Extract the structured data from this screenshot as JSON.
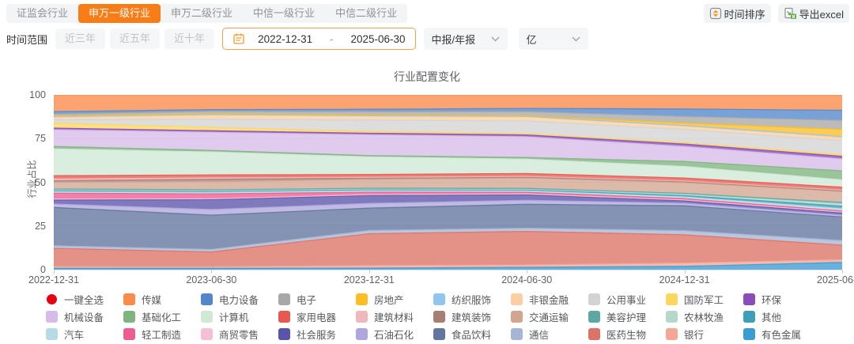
{
  "tabs": {
    "items": [
      {
        "label": "证监会行业",
        "active": false
      },
      {
        "label": "申万一级行业",
        "active": true
      },
      {
        "label": "申万二级行业",
        "active": false
      },
      {
        "label": "中信一级行业",
        "active": false
      },
      {
        "label": "中信二级行业",
        "active": false
      }
    ]
  },
  "actions": {
    "sort_label": "时间排序",
    "export_label": "导出excel",
    "sort_icon": "sort-arrows-icon",
    "export_icon": "excel-export-icon",
    "accent_orange": "#f59a23",
    "excel_green": "#5bab4e"
  },
  "filters": {
    "range_label": "时间范围",
    "range_options": [
      "近三年",
      "近五年",
      "近十年"
    ],
    "date_start": "2022-12-31",
    "date_separator": "-",
    "date_end": "2025-06-30",
    "report_select": "中报/年报",
    "unit_select": "亿"
  },
  "legend": {
    "select_all": {
      "label": "一键全选",
      "color": "#e60012"
    }
  },
  "chart_data": {
    "type": "area",
    "stacked": true,
    "normalized_percent": true,
    "title": "行业配置变化",
    "xlabel": "",
    "ylabel": "行业占比",
    "ylim": [
      0,
      100
    ],
    "yticks": [
      0,
      25,
      50,
      75,
      100
    ],
    "grid": true,
    "legend_position": "bottom",
    "x": [
      "2022-12-31",
      "2023-06-30",
      "2023-12-31",
      "2024-06-30",
      "2024-12-31",
      "2025-06-30"
    ],
    "series": [
      {
        "name": "传媒",
        "color": "#fa8b4a",
        "values": [
          10,
          9,
          9,
          8.5,
          8.5,
          8.5
        ]
      },
      {
        "name": "电力设备",
        "color": "#5287cc",
        "values": [
          1.5,
          1,
          1.5,
          2,
          4.5,
          5.5
        ]
      },
      {
        "name": "电子",
        "color": "#a8a8a8",
        "values": [
          1,
          1.5,
          2,
          2.5,
          4,
          5
        ]
      },
      {
        "name": "房地产",
        "color": "#fbbe23",
        "values": [
          0.5,
          0.5,
          0.5,
          0.5,
          1.5,
          4
        ]
      },
      {
        "name": "纺织服饰",
        "color": "#90c5f0",
        "values": [
          0.4,
          0.4,
          0.3,
          0.3,
          0.3,
          0.3
        ]
      },
      {
        "name": "非银金融",
        "color": "#fbcfa2",
        "values": [
          1.5,
          2.5,
          2.5,
          2.5,
          2,
          2
        ]
      },
      {
        "name": "公用事业",
        "color": "#d3d3d3",
        "values": [
          2,
          5,
          7,
          8,
          8,
          7.5
        ]
      },
      {
        "name": "国防军工",
        "color": "#fbd75f",
        "values": [
          3,
          2,
          1.2,
          0.8,
          0.8,
          1
        ]
      },
      {
        "name": "环保",
        "color": "#8a4db8",
        "values": [
          1,
          1,
          1,
          1.2,
          1.5,
          1.5
        ]
      },
      {
        "name": "机械设备",
        "color": "#d7bbe8",
        "values": [
          10,
          11,
          13,
          13,
          9,
          6.5
        ]
      },
      {
        "name": "基础化工",
        "color": "#7eb57e",
        "values": [
          1.5,
          1,
          0.8,
          1,
          3,
          5
        ]
      },
      {
        "name": "计算机",
        "color": "#cfe9d6",
        "values": [
          16,
          14,
          11,
          9,
          7,
          4
        ]
      },
      {
        "name": "家用电器",
        "color": "#e85850",
        "values": [
          2,
          1.8,
          1.8,
          1.8,
          1.8,
          1.6
        ]
      },
      {
        "name": "建筑材料",
        "color": "#efb8bd",
        "values": [
          1,
          0.8,
          0.5,
          0.5,
          0.4,
          0.4
        ]
      },
      {
        "name": "建筑装饰",
        "color": "#a77f72",
        "values": [
          1,
          1.5,
          0.8,
          0.5,
          0.5,
          0.4
        ]
      },
      {
        "name": "交通运输",
        "color": "#d2a591",
        "values": [
          4,
          5,
          5.5,
          6.5,
          6.5,
          6
        ]
      },
      {
        "name": "美容护理",
        "color": "#5da7a3",
        "values": [
          0.5,
          0.5,
          0.5,
          0.5,
          0.6,
          0.8
        ]
      },
      {
        "name": "农林牧渔",
        "color": "#b5d8cb",
        "values": [
          0.5,
          0.5,
          0.5,
          0.5,
          0.8,
          1.2
        ]
      },
      {
        "name": "其他",
        "color": "#3f9fb8",
        "values": [
          0.5,
          0.5,
          0.5,
          0.5,
          0.8,
          1.5
        ]
      },
      {
        "name": "汽车",
        "color": "#b5dce6",
        "values": [
          1,
          1,
          1,
          1,
          1,
          1.2
        ]
      },
      {
        "name": "轻工制造",
        "color": "#ed5e90",
        "values": [
          3.5,
          3,
          1.5,
          1,
          0.8,
          0.6
        ]
      },
      {
        "name": "商贸零售",
        "color": "#f7bed7",
        "values": [
          0.5,
          0.5,
          0.5,
          0.5,
          0.5,
          0.5
        ]
      },
      {
        "name": "社会服务",
        "color": "#5a55aa",
        "values": [
          2.5,
          6,
          5,
          3.5,
          1.5,
          1.2
        ]
      },
      {
        "name": "石油石化",
        "color": "#aea6dc",
        "values": [
          2,
          3.5,
          3,
          2.5,
          1.5,
          1
        ]
      },
      {
        "name": "食品饮料",
        "color": "#61759e",
        "values": [
          23,
          21,
          14,
          15,
          15,
          13
        ]
      },
      {
        "name": "通信",
        "color": "#a6b5d5",
        "values": [
          1.5,
          1.5,
          2,
          2,
          2.5,
          2.5
        ]
      },
      {
        "name": "医药生物",
        "color": "#dd7266",
        "values": [
          11,
          9,
          20,
          21,
          17,
          8
        ]
      },
      {
        "name": "银行",
        "color": "#f4a797",
        "values": [
          1,
          1,
          1.5,
          1.5,
          2,
          1.5
        ]
      },
      {
        "name": "有色金属",
        "color": "#3d9bd3",
        "values": [
          0.8,
          0.8,
          1,
          1.5,
          2,
          4
        ]
      }
    ]
  }
}
